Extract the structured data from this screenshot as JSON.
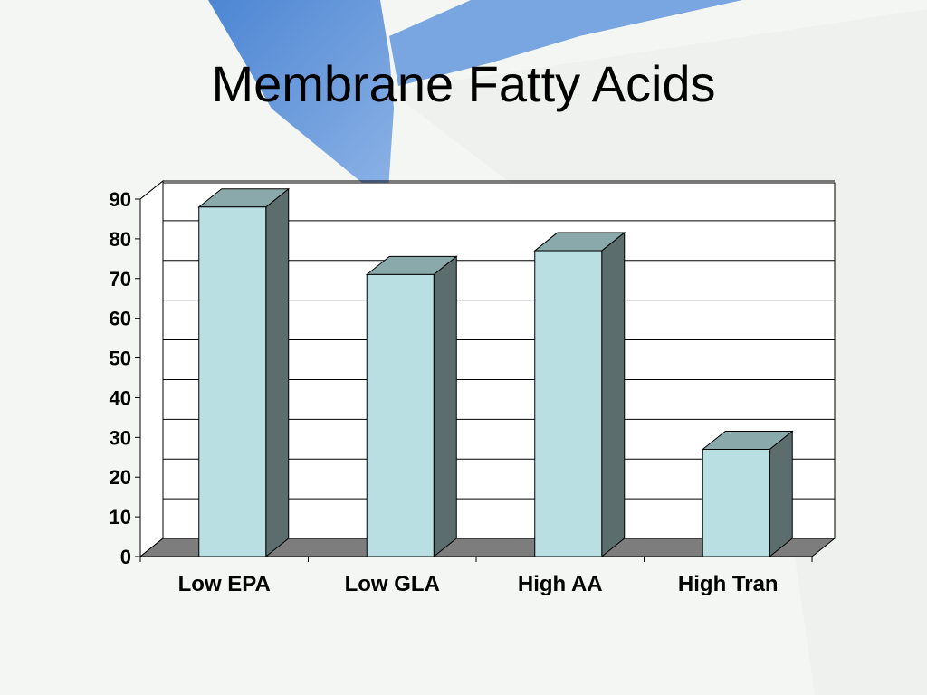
{
  "slide": {
    "title": "Membrane Fatty Acids"
  },
  "colors": {
    "bar_front": "#b9dfe2",
    "bar_top": "#8aa9ab",
    "bar_side": "#5c6d6e",
    "floor": "#7d7d7d",
    "background_accent": "#5b8fd6"
  },
  "chart_data": {
    "type": "bar",
    "categories": [
      "Low EPA",
      "Low GLA",
      "High AA",
      "High Tran"
    ],
    "values": [
      88,
      71,
      77,
      27
    ],
    "ylim": [
      0,
      90
    ],
    "yticks": [
      0,
      10,
      20,
      30,
      40,
      50,
      60,
      70,
      80,
      90
    ],
    "grid": true,
    "legend": "none",
    "style": "3d-column"
  }
}
